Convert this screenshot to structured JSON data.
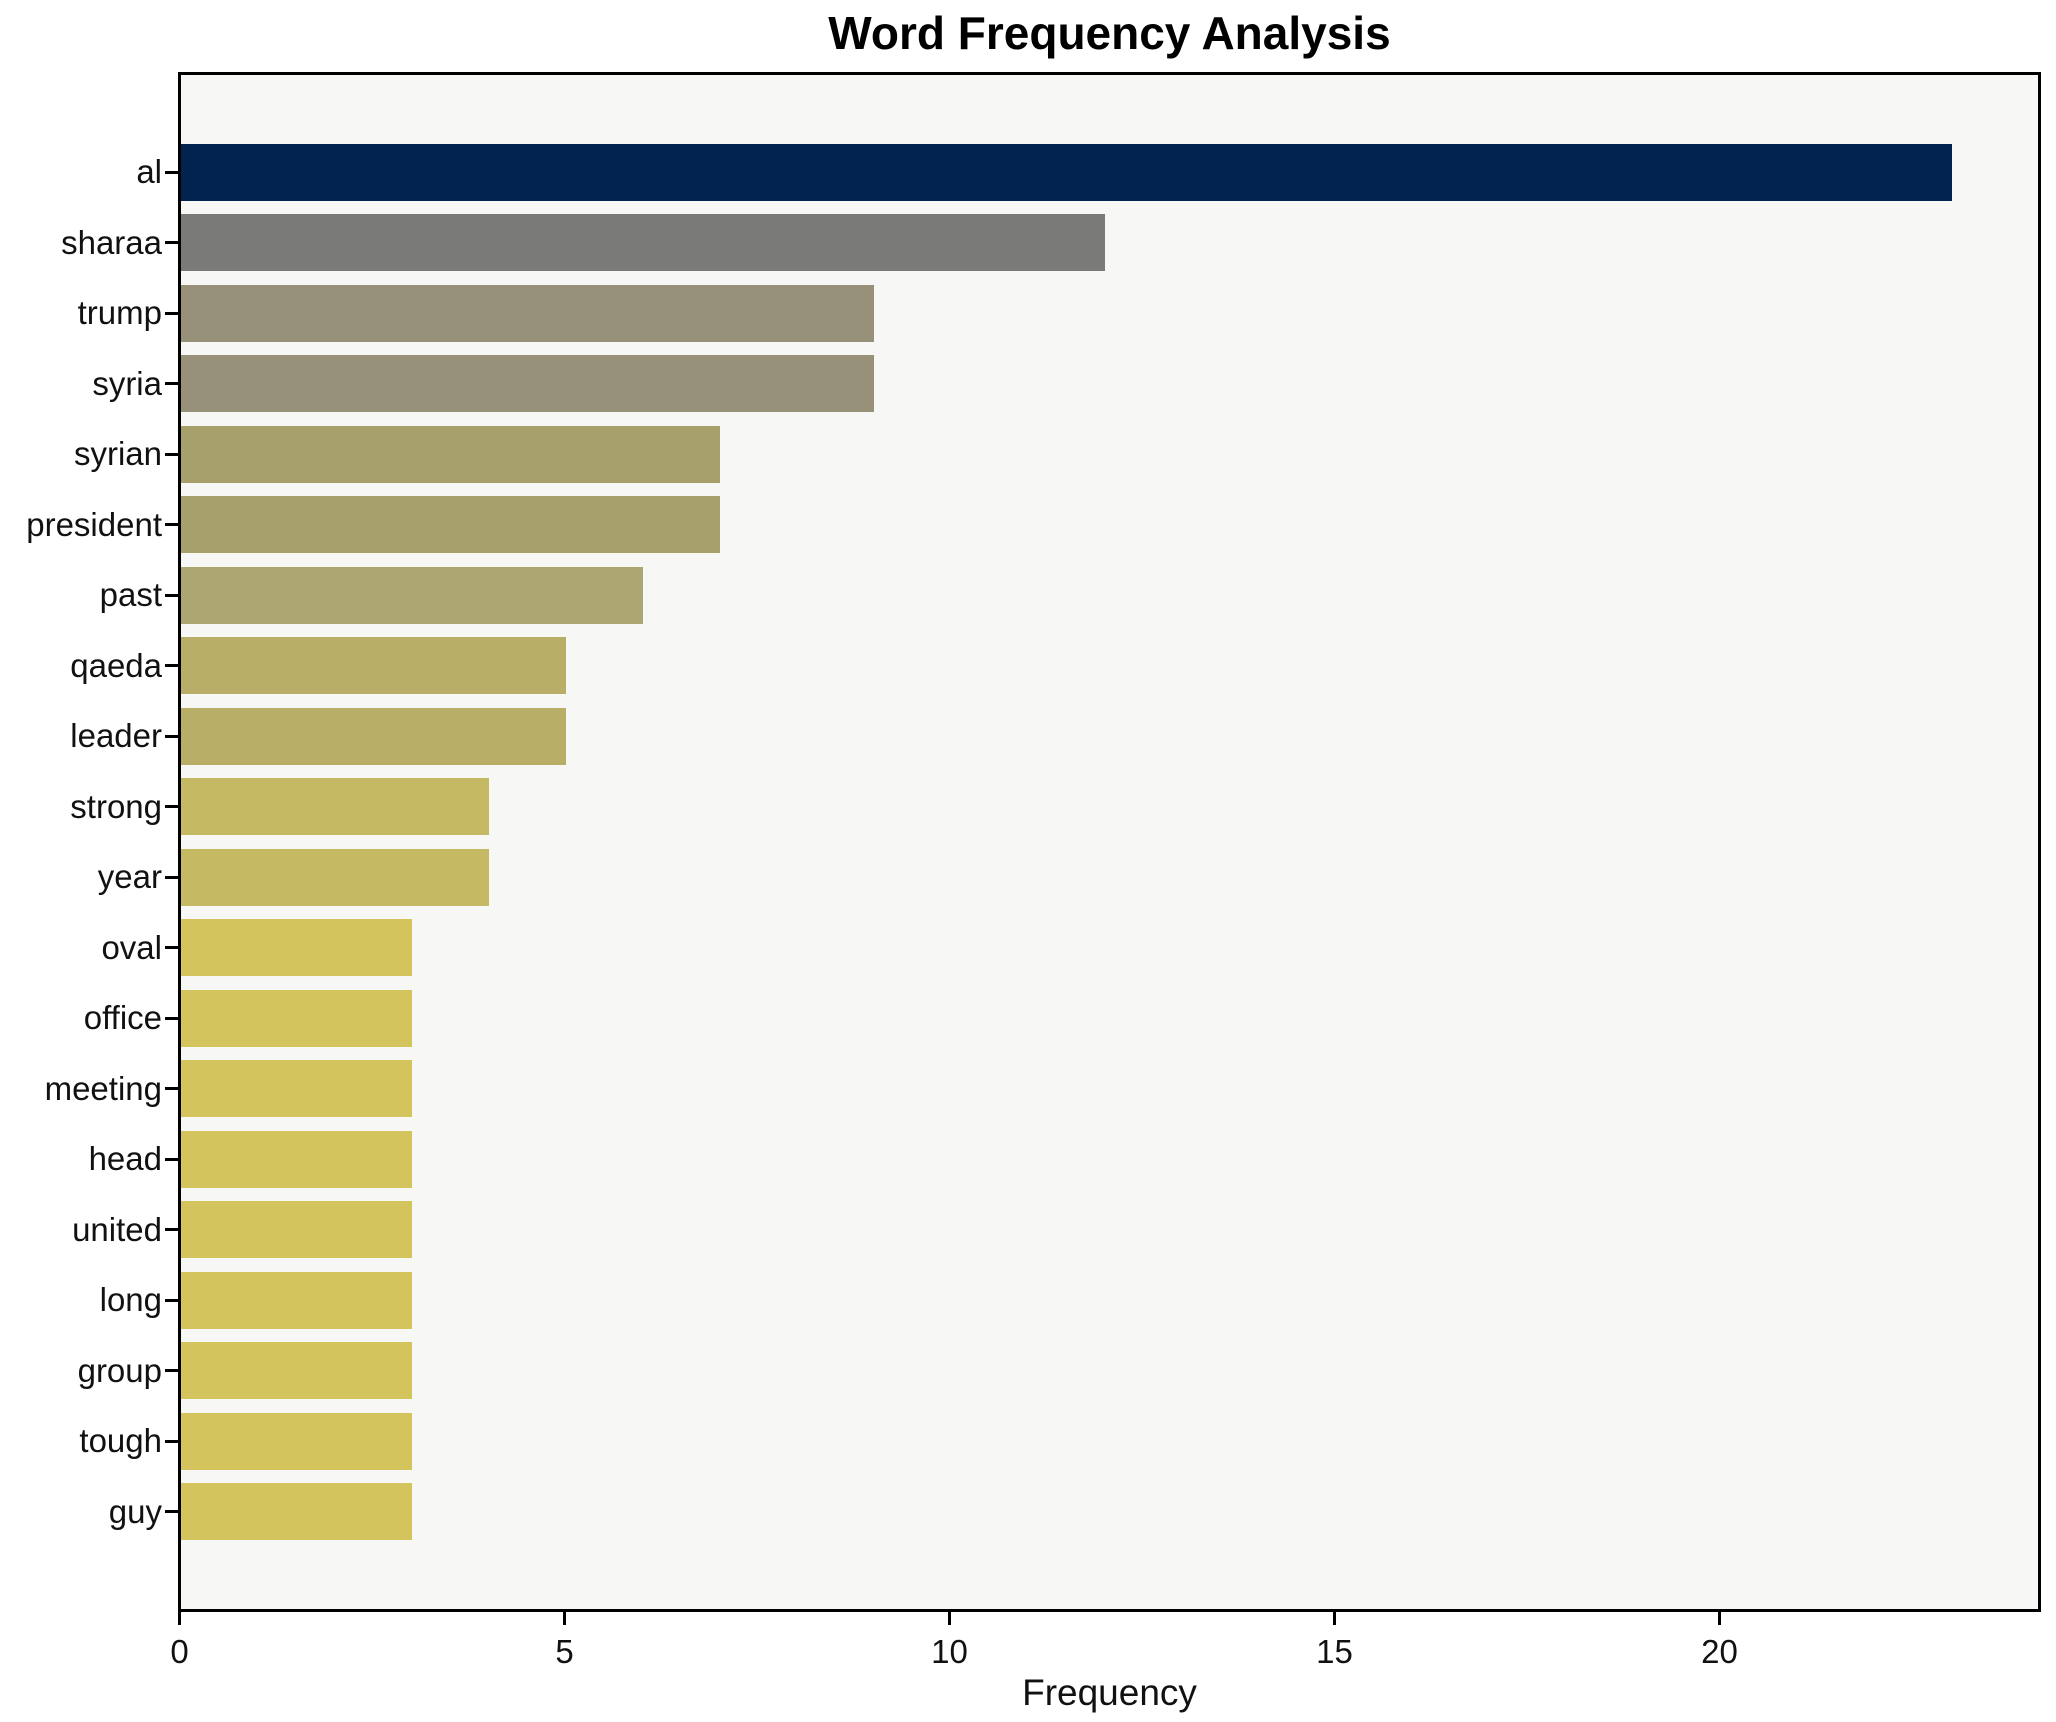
{
  "chart_data": {
    "type": "bar",
    "orientation": "horizontal",
    "title": "Word Frequency Analysis",
    "xlabel": "Frequency",
    "ylabel": "",
    "categories": [
      "al",
      "sharaa",
      "trump",
      "syria",
      "syrian",
      "president",
      "past",
      "qaeda",
      "leader",
      "strong",
      "year",
      "oval",
      "office",
      "meeting",
      "head",
      "united",
      "long",
      "group",
      "tough",
      "guy"
    ],
    "values": [
      23,
      12,
      9,
      9,
      7,
      7,
      6,
      5,
      5,
      4,
      4,
      3,
      3,
      3,
      3,
      3,
      3,
      3,
      3,
      3
    ],
    "bar_colors": [
      "#022350",
      "#7a7a78",
      "#97917a",
      "#97917a",
      "#a7a06b",
      "#a7a06b",
      "#aca670",
      "#b9ae68",
      "#b9ae68",
      "#c6b963",
      "#c6b963",
      "#d3c45e",
      "#d3c45e",
      "#d3c45e",
      "#d3c45e",
      "#d3c45e",
      "#d3c45e",
      "#d3c45e",
      "#d3c45e",
      "#d3c45e"
    ],
    "x_ticks": [
      0,
      5,
      10,
      15,
      20
    ],
    "xlim": [
      0,
      24.15
    ],
    "grid": false,
    "legend": "none",
    "plot_background": "#f7f7f5",
    "figure_background": "#ffffff",
    "spine_color": "#000000"
  }
}
